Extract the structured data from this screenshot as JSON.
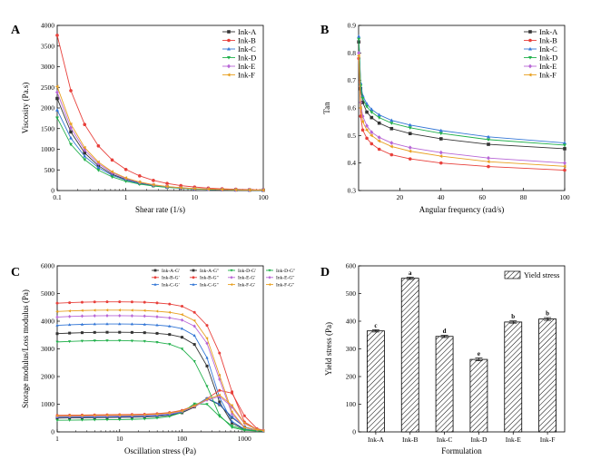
{
  "panel_labels": [
    "A",
    "B",
    "C",
    "D"
  ],
  "colors": {
    "A": "#333333",
    "B": "#e8403b",
    "C": "#3477d6",
    "D": "#21b04b",
    "E": "#b866d6",
    "F": "#e8a020",
    "text": "#000000"
  },
  "chart_data": [
    {
      "type": "line",
      "panel": "A",
      "xlabel": "Shear rate (1/s)",
      "ylabel": "Viscosity (Pa.s)",
      "xscale": "log",
      "xlim": [
        0.1,
        100
      ],
      "ylim": [
        0,
        4000
      ],
      "xticks": [
        "0.1",
        "1",
        "10",
        "100"
      ],
      "yticks": [
        "0",
        "500",
        "1000",
        "1500",
        "2000",
        "2500",
        "3000",
        "3500",
        "4000"
      ],
      "legend": "top-right",
      "x": [
        0.1,
        0.158,
        0.251,
        0.398,
        0.631,
        1,
        1.585,
        2.512,
        3.981,
        6.31,
        10,
        15.85,
        25.12,
        39.81,
        63.1,
        100
      ],
      "series": [
        {
          "name": "Ink-A",
          "marker": "square",
          "values": [
            2230,
            1420,
            910,
            600,
            395,
            265,
            180,
            122,
            85,
            60,
            42,
            30,
            22,
            16,
            12,
            9
          ]
        },
        {
          "name": "Ink-B",
          "marker": "circle",
          "values": [
            3760,
            2420,
            1600,
            1080,
            740,
            510,
            355,
            245,
            172,
            120,
            85,
            60,
            43,
            31,
            22,
            16
          ]
        },
        {
          "name": "Ink-C",
          "marker": "triangle-up",
          "values": [
            1950,
            1270,
            830,
            555,
            370,
            250,
            170,
            116,
            80,
            56,
            40,
            29,
            21,
            15,
            11,
            8
          ]
        },
        {
          "name": "Ink-D",
          "marker": "triangle-down",
          "values": [
            1760,
            1120,
            750,
            495,
            330,
            225,
            155,
            108,
            75,
            53,
            38,
            27,
            20,
            14,
            10,
            7
          ]
        },
        {
          "name": "Ink-E",
          "marker": "diamond",
          "values": [
            2380,
            1520,
            980,
            650,
            430,
            290,
            198,
            136,
            94,
            66,
            47,
            34,
            24,
            17,
            13,
            9
          ]
        },
        {
          "name": "Ink-F",
          "marker": "triangle-left",
          "values": [
            2520,
            1610,
            1040,
            690,
            455,
            305,
            208,
            142,
            98,
            69,
            49,
            35,
            25,
            18,
            13,
            9
          ]
        }
      ]
    },
    {
      "type": "line",
      "panel": "B",
      "xlabel": "Angular frequency (rad/s)",
      "ylabel": "Tan",
      "xlim": [
        0,
        100
      ],
      "ylim": [
        0.3,
        0.9
      ],
      "xticks": [
        "20",
        "40",
        "60",
        "80",
        "100"
      ],
      "yticks": [
        "0.3",
        "0.4",
        "0.5",
        "0.6",
        "0.7",
        "0.8",
        "0.9"
      ],
      "legend": "top-right",
      "x": [
        0.1,
        1,
        2,
        4,
        6.3,
        10,
        16,
        25,
        40,
        63,
        100
      ],
      "series": [
        {
          "name": "Ink-A",
          "marker": "square",
          "values": [
            0.84,
            0.67,
            0.62,
            0.585,
            0.565,
            0.545,
            0.525,
            0.507,
            0.488,
            0.468,
            0.452
          ]
        },
        {
          "name": "Ink-B",
          "marker": "circle",
          "values": [
            0.78,
            0.57,
            0.52,
            0.49,
            0.47,
            0.45,
            0.43,
            0.415,
            0.4,
            0.387,
            0.374
          ]
        },
        {
          "name": "Ink-C",
          "marker": "triangle-up",
          "values": [
            0.86,
            0.69,
            0.645,
            0.615,
            0.595,
            0.575,
            0.555,
            0.538,
            0.518,
            0.495,
            0.473
          ]
        },
        {
          "name": "Ink-D",
          "marker": "triangle-down",
          "values": [
            0.85,
            0.68,
            0.635,
            0.605,
            0.585,
            0.565,
            0.545,
            0.528,
            0.508,
            0.485,
            0.465
          ]
        },
        {
          "name": "Ink-E",
          "marker": "diamond",
          "values": [
            0.8,
            0.62,
            0.57,
            0.535,
            0.512,
            0.493,
            0.473,
            0.456,
            0.438,
            0.418,
            0.4
          ]
        },
        {
          "name": "Ink-F",
          "marker": "triangle-left",
          "values": [
            0.79,
            0.6,
            0.55,
            0.52,
            0.5,
            0.48,
            0.46,
            0.443,
            0.425,
            0.405,
            0.388
          ]
        }
      ]
    },
    {
      "type": "line",
      "panel": "C",
      "xlabel": "Oscillation stress (Pa)",
      "ylabel": "Storage modulus/Loss modulus (Pa)",
      "xscale": "log",
      "xlim": [
        1,
        2000
      ],
      "ylim": [
        0,
        6000
      ],
      "xticks": [
        "1",
        "10",
        "100",
        "1000"
      ],
      "yticks": [
        "0",
        "1000",
        "2000",
        "3000",
        "4000",
        "5000",
        "6000"
      ],
      "legend": "top-right",
      "x": [
        1,
        1.58,
        2.51,
        3.98,
        6.31,
        10,
        15.8,
        25.1,
        39.8,
        63.1,
        100,
        158,
        251,
        398,
        631,
        1000,
        1585,
        2000
      ],
      "series": [
        {
          "name": "Ink-A-G'",
          "marker": "square",
          "values": [
            3550,
            3570,
            3585,
            3595,
            3600,
            3600,
            3595,
            3585,
            3560,
            3520,
            3420,
            3160,
            2380,
            1080,
            320,
            90,
            40,
            30
          ]
        },
        {
          "name": "Ink-B-G'",
          "marker": "circle",
          "values": [
            4650,
            4670,
            4685,
            4695,
            4700,
            4700,
            4695,
            4685,
            4660,
            4620,
            4540,
            4320,
            3850,
            2850,
            1450,
            360,
            90,
            50
          ]
        },
        {
          "name": "Ink-C-G'",
          "marker": "triangle-up",
          "values": [
            3850,
            3870,
            3885,
            3895,
            3900,
            3900,
            3895,
            3885,
            3860,
            3820,
            3730,
            3480,
            2680,
            1250,
            380,
            100,
            45,
            30
          ]
        },
        {
          "name": "Ink-A-G''",
          "marker": "square",
          "values": [
            500,
            505,
            510,
            515,
            520,
            525,
            530,
            540,
            560,
            600,
            690,
            900,
            1200,
            980,
            520,
            180,
            60,
            40
          ]
        },
        {
          "name": "Ink-B-G''",
          "marker": "circle",
          "values": [
            600,
            605,
            610,
            615,
            620,
            625,
            630,
            640,
            660,
            700,
            780,
            950,
            1200,
            1500,
            1400,
            580,
            120,
            60
          ]
        },
        {
          "name": "Ink-C-G''",
          "marker": "triangle-up",
          "values": [
            530,
            535,
            540,
            545,
            550,
            555,
            560,
            570,
            590,
            630,
            720,
            930,
            1220,
            1000,
            540,
            180,
            60,
            40
          ]
        },
        {
          "name": "Ink-D-G'",
          "marker": "triangle-down",
          "values": [
            3250,
            3270,
            3285,
            3295,
            3300,
            3300,
            3290,
            3275,
            3240,
            3170,
            3000,
            2550,
            1650,
            600,
            160,
            60,
            30,
            25
          ]
        },
        {
          "name": "Ink-E-G'",
          "marker": "diamond",
          "values": [
            4150,
            4170,
            4185,
            4195,
            4200,
            4200,
            4195,
            4185,
            4160,
            4120,
            4040,
            3820,
            3200,
            1900,
            650,
            150,
            60,
            40
          ]
        },
        {
          "name": "Ink-F-G'",
          "marker": "triangle-left",
          "values": [
            4350,
            4370,
            4385,
            4395,
            4400,
            4400,
            4395,
            4385,
            4360,
            4320,
            4240,
            4020,
            3380,
            2050,
            720,
            160,
            60,
            40
          ]
        },
        {
          "name": "Ink-D-G''",
          "marker": "triangle-down",
          "values": [
            420,
            425,
            430,
            435,
            440,
            445,
            455,
            470,
            500,
            560,
            700,
            1020,
            1000,
            560,
            220,
            80,
            40,
            30
          ]
        },
        {
          "name": "Ink-E-G''",
          "marker": "diamond",
          "values": [
            560,
            565,
            570,
            575,
            580,
            585,
            590,
            600,
            620,
            660,
            740,
            920,
            1150,
            1280,
            900,
            300,
            80,
            50
          ]
        },
        {
          "name": "Ink-F-G''",
          "marker": "triangle-left",
          "values": [
            580,
            585,
            590,
            595,
            600,
            605,
            610,
            620,
            640,
            680,
            760,
            940,
            1180,
            1330,
            960,
            320,
            85,
            50
          ]
        }
      ]
    },
    {
      "type": "bar",
      "panel": "D",
      "xlabel": "Formulation",
      "ylabel": "Yield stress (Pa)",
      "ylim": [
        0,
        600
      ],
      "yticks": [
        "0",
        "100",
        "200",
        "300",
        "400",
        "500",
        "600"
      ],
      "legend": "top-right",
      "categories": [
        "Ink-A",
        "Ink-B",
        "Ink-C",
        "Ink-D",
        "Ink-E",
        "Ink-F"
      ],
      "series": [
        {
          "name": "Yield stress",
          "values": [
            365,
            555,
            345,
            262,
            397,
            408
          ]
        }
      ],
      "errors": [
        4,
        4,
        4,
        5,
        4,
        5
      ],
      "significance": [
        "c",
        "a",
        "d",
        "e",
        "b",
        "b"
      ]
    }
  ]
}
